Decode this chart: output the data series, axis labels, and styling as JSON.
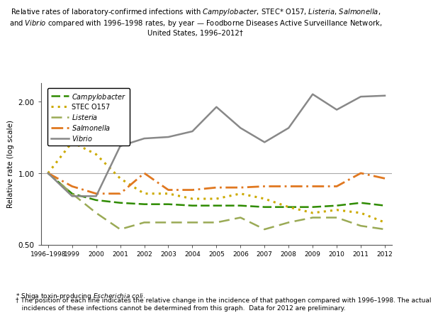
{
  "title_text": "Relative rates of laboratory-confirmed infections with $\\it{Campylobacter}$, STEC* O157, $\\it{Listeria}$, $\\it{Salmonella}$,\nand $\\it{Vibrio}$ compared with 1996–1998 rates, by year — Foodborne Diseases Active Surveillance Network,\nUnited States, 1996–2012†",
  "ylabel": "Relative rate (log scale)",
  "x_labels": [
    "1996–1998",
    "1999",
    "2000",
    "2001",
    "2002",
    "2003",
    "2004",
    "2005",
    "2006",
    "2007",
    "2008",
    "2009",
    "2010",
    "2011",
    "2012"
  ],
  "x_values": [
    0,
    1,
    2,
    3,
    4,
    5,
    6,
    7,
    8,
    9,
    10,
    11,
    12,
    13,
    14
  ],
  "series": {
    "Campylobacter": {
      "color": "#2e8b00",
      "dash": [
        5,
        2
      ],
      "linewidth": 1.8,
      "values": [
        1.0,
        0.82,
        0.77,
        0.75,
        0.74,
        0.74,
        0.73,
        0.73,
        0.73,
        0.72,
        0.72,
        0.72,
        0.73,
        0.75,
        0.73
      ]
    },
    "STEC O157": {
      "color": "#ccaa00",
      "dash": [
        1,
        2
      ],
      "linewidth": 2.2,
      "values": [
        1.0,
        1.35,
        1.2,
        0.95,
        0.82,
        0.82,
        0.78,
        0.78,
        0.82,
        0.78,
        0.72,
        0.68,
        0.7,
        0.68,
        0.62
      ]
    },
    "Listeria": {
      "color": "#9aaa55",
      "dash": [
        6,
        3
      ],
      "linewidth": 1.8,
      "values": [
        1.0,
        0.82,
        0.68,
        0.58,
        0.62,
        0.62,
        0.62,
        0.62,
        0.65,
        0.58,
        0.62,
        0.65,
        0.65,
        0.6,
        0.58
      ]
    },
    "Salmonella": {
      "color": "#e07820",
      "dash": [
        6,
        2,
        1,
        2
      ],
      "linewidth": 2.0,
      "values": [
        1.0,
        0.88,
        0.82,
        0.82,
        1.0,
        0.85,
        0.85,
        0.87,
        0.87,
        0.88,
        0.88,
        0.88,
        0.88,
        1.0,
        0.95
      ]
    },
    "Vibrio": {
      "color": "#888888",
      "dash": [],
      "linewidth": 1.8,
      "values": [
        1.0,
        0.8,
        0.8,
        1.3,
        1.4,
        1.42,
        1.5,
        1.9,
        1.55,
        1.35,
        1.55,
        2.15,
        1.85,
        2.1,
        2.12
      ]
    }
  },
  "series_order": [
    "Campylobacter",
    "STEC O157",
    "Listeria",
    "Salmonella",
    "Vibrio"
  ],
  "legend_labels": [
    "$\\it{Campylobacter}$",
    "STEC O157",
    "$\\it{Listeria}$",
    "$\\it{Salmonella}$",
    "$\\it{Vibrio}$"
  ],
  "ylim_log": [
    0.5,
    2.4
  ],
  "yticks": [
    0.5,
    1.0,
    2.0
  ],
  "footnote1": "* Shiga toxin-producing $\\it{Escherichia\\ coli}$.",
  "footnote2": "† The position of each line indicates the relative change in the incidence of that pathogen compared with 1996–1998. The actual\n   incidences of these infections cannot be determined from this graph.  Data for 2012 are preliminary.",
  "background_color": "#ffffff"
}
